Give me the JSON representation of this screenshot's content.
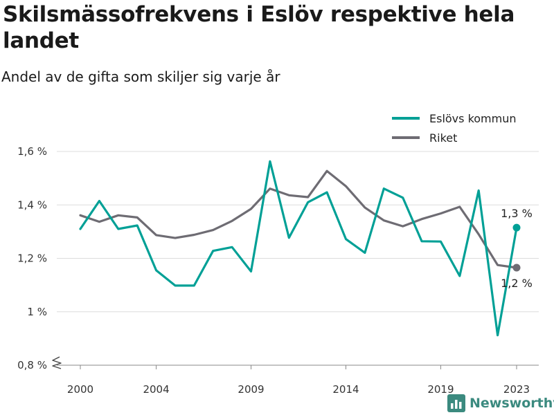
{
  "header": {
    "title": "Skilsmässofrekvens i Eslöv respektive hela landet",
    "subtitle": "Andel av de gifta som skiljer sig varje år"
  },
  "brand": {
    "name": "Newsworthy",
    "icon": "bar-chart-icon",
    "color": "#3b8a7f"
  },
  "chart_data": {
    "type": "line",
    "x": [
      2000,
      2001,
      2002,
      2003,
      2004,
      2005,
      2006,
      2007,
      2008,
      2009,
      2010,
      2011,
      2012,
      2013,
      2014,
      2015,
      2016,
      2017,
      2018,
      2019,
      2020,
      2021,
      2022,
      2023
    ],
    "series": [
      {
        "name": "Eslövs kommun",
        "color": "#00a096",
        "values": [
          1.31,
          1.415,
          1.31,
          1.323,
          1.155,
          1.098,
          1.098,
          1.228,
          1.242,
          1.151,
          1.563,
          1.277,
          1.41,
          1.447,
          1.272,
          1.221,
          1.461,
          1.427,
          1.264,
          1.263,
          1.134,
          1.454,
          0.912,
          1.315
        ],
        "end_label": "1,3 %"
      },
      {
        "name": "Riket",
        "color": "#6e6c73",
        "values": [
          1.361,
          1.337,
          1.361,
          1.353,
          1.287,
          1.276,
          1.288,
          1.306,
          1.34,
          1.385,
          1.461,
          1.436,
          1.429,
          1.527,
          1.47,
          1.39,
          1.342,
          1.32,
          1.347,
          1.368,
          1.393,
          1.29,
          1.175,
          1.165
        ],
        "end_label": "1,2 %"
      }
    ],
    "x_ticks": [
      2000,
      2004,
      2009,
      2014,
      2019,
      2023
    ],
    "x_tick_labels": [
      "2000",
      "2004",
      "2009",
      "2014",
      "2019",
      "2023"
    ],
    "y_ticks": [
      0.8,
      1.0,
      1.2,
      1.4,
      1.6
    ],
    "y_tick_labels": [
      "0,8 %",
      "1 %",
      "1,2 %",
      "1,4 %",
      "1,6 %"
    ],
    "ylim": [
      0.8,
      1.6
    ],
    "xlim": [
      2000,
      2023
    ],
    "y_axis_break": true,
    "grid": "horizontal",
    "legend_position": "top-right",
    "title": "Skilsmässofrekvens i Eslöv respektive hela landet",
    "subtitle": "Andel av de gifta som skiljer sig varje år"
  }
}
